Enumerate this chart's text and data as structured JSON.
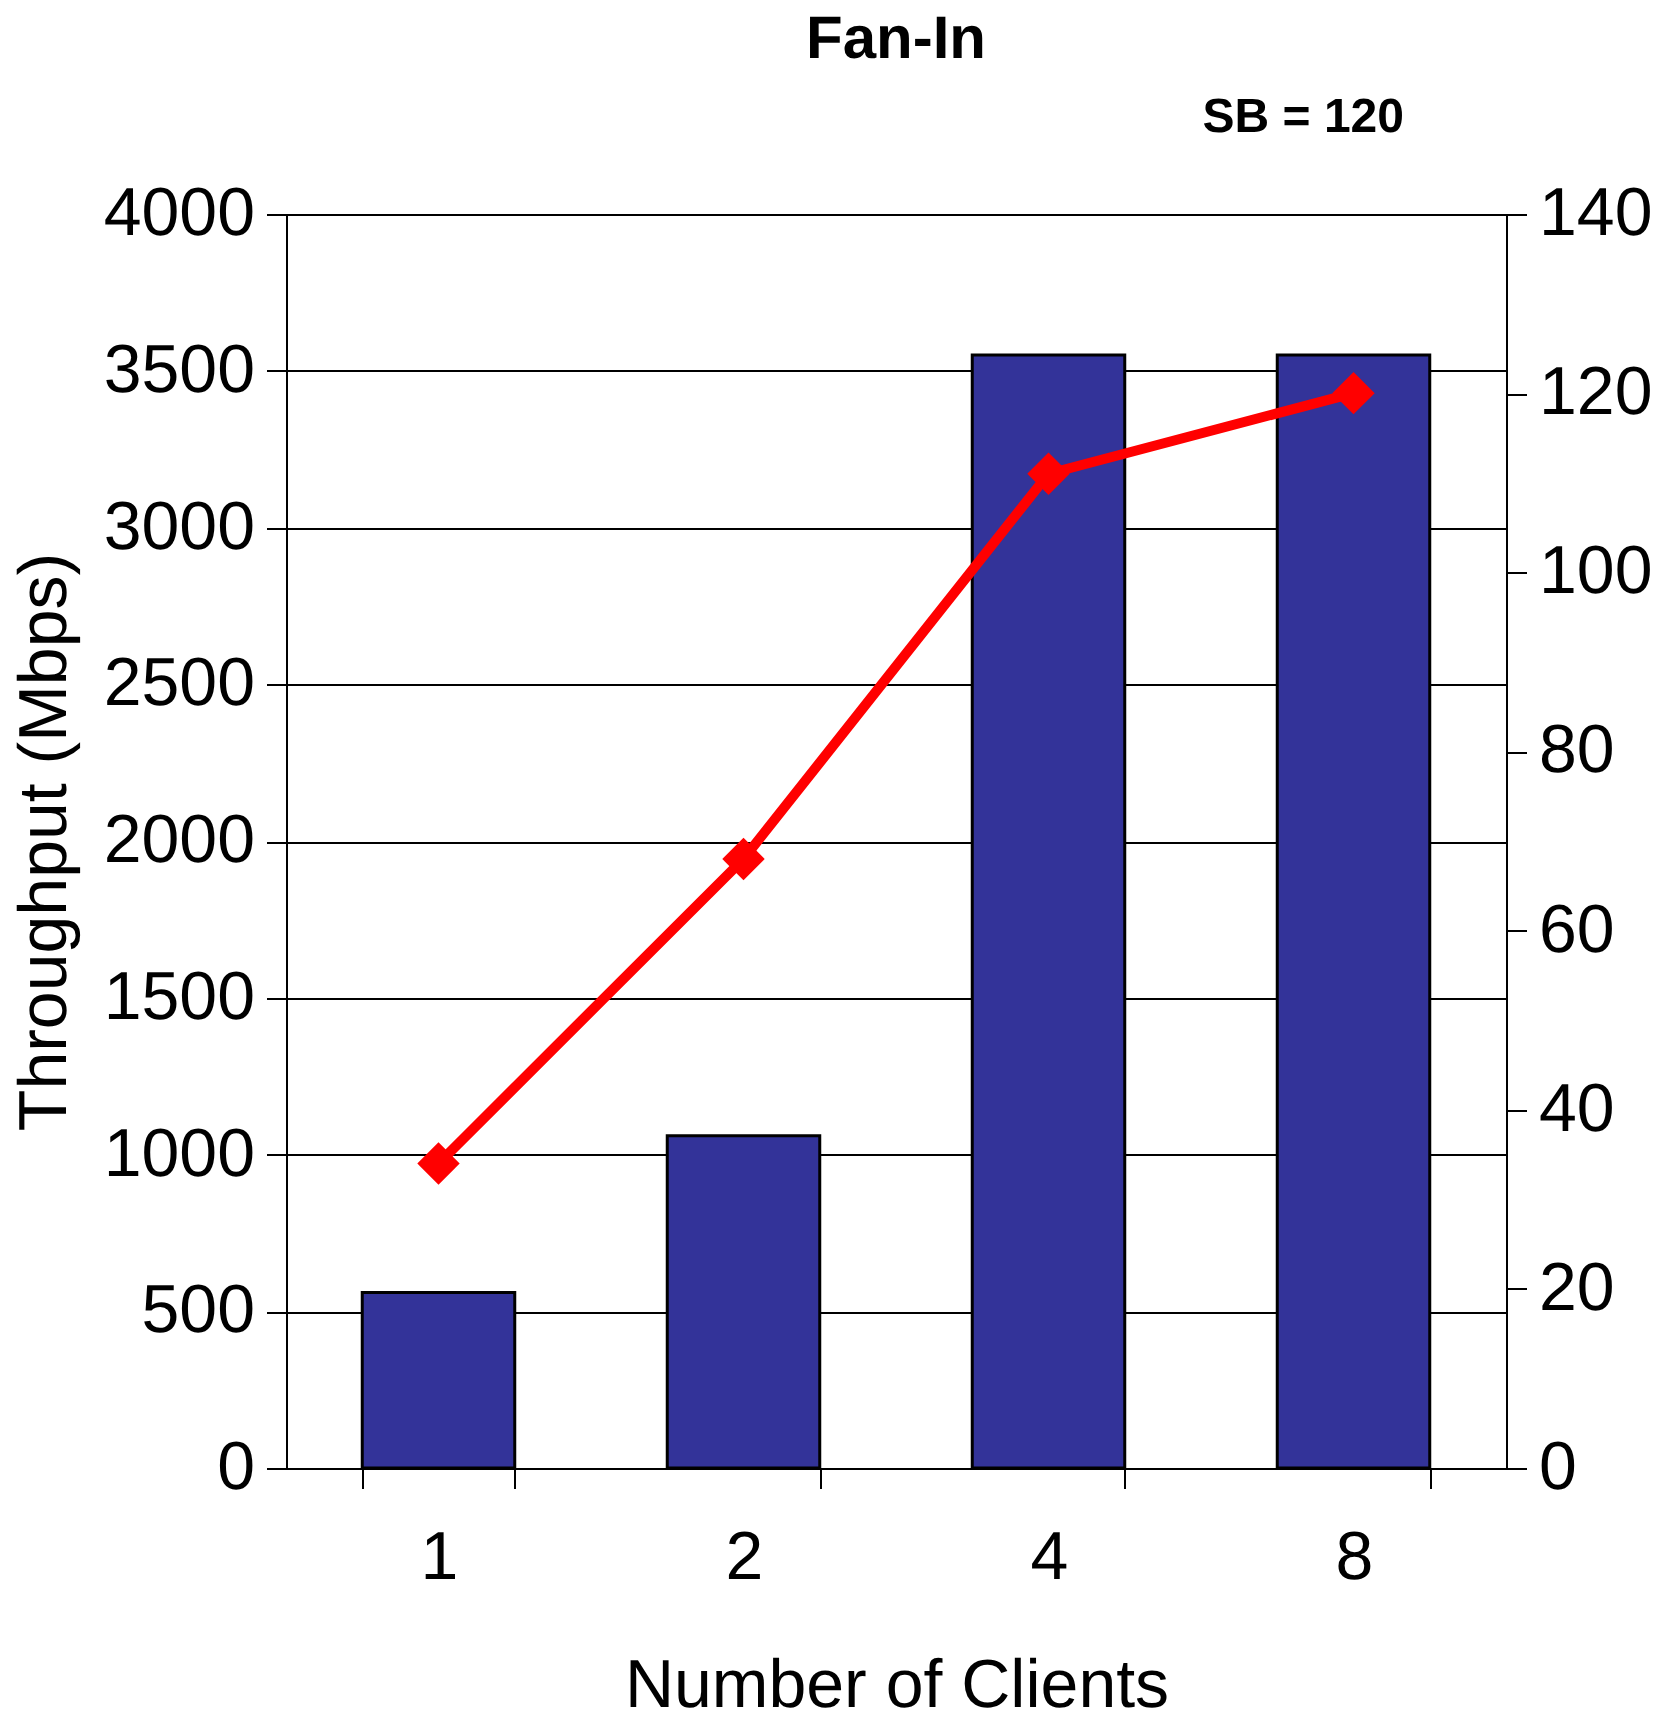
{
  "chart_data": {
    "type": "bar",
    "title": "Fan-In",
    "xlabel": "Number of Clients",
    "ylabel": "Throughput (Mbps)",
    "annotations": [
      "SB = 120"
    ],
    "categories": [
      "1",
      "2",
      "4",
      "8"
    ],
    "series": [
      {
        "color": "#333399",
        "values": [
          560,
          1060,
          3550,
          3550
        ]
      },
      {
        "type": "line",
        "axis": "y2",
        "color": "#ff0000",
        "marker": "diamond",
        "values": [
          34,
          68,
          111,
          120
        ]
      }
    ],
    "ylim": [
      0,
      4000
    ],
    "yticks": [
      0,
      500,
      1000,
      1500,
      2000,
      2500,
      3000,
      3500,
      4000
    ],
    "y2lim": [
      0,
      140
    ],
    "y2ticks": [
      0,
      20,
      40,
      60,
      80,
      100,
      120,
      140
    ],
    "grid": "y"
  }
}
